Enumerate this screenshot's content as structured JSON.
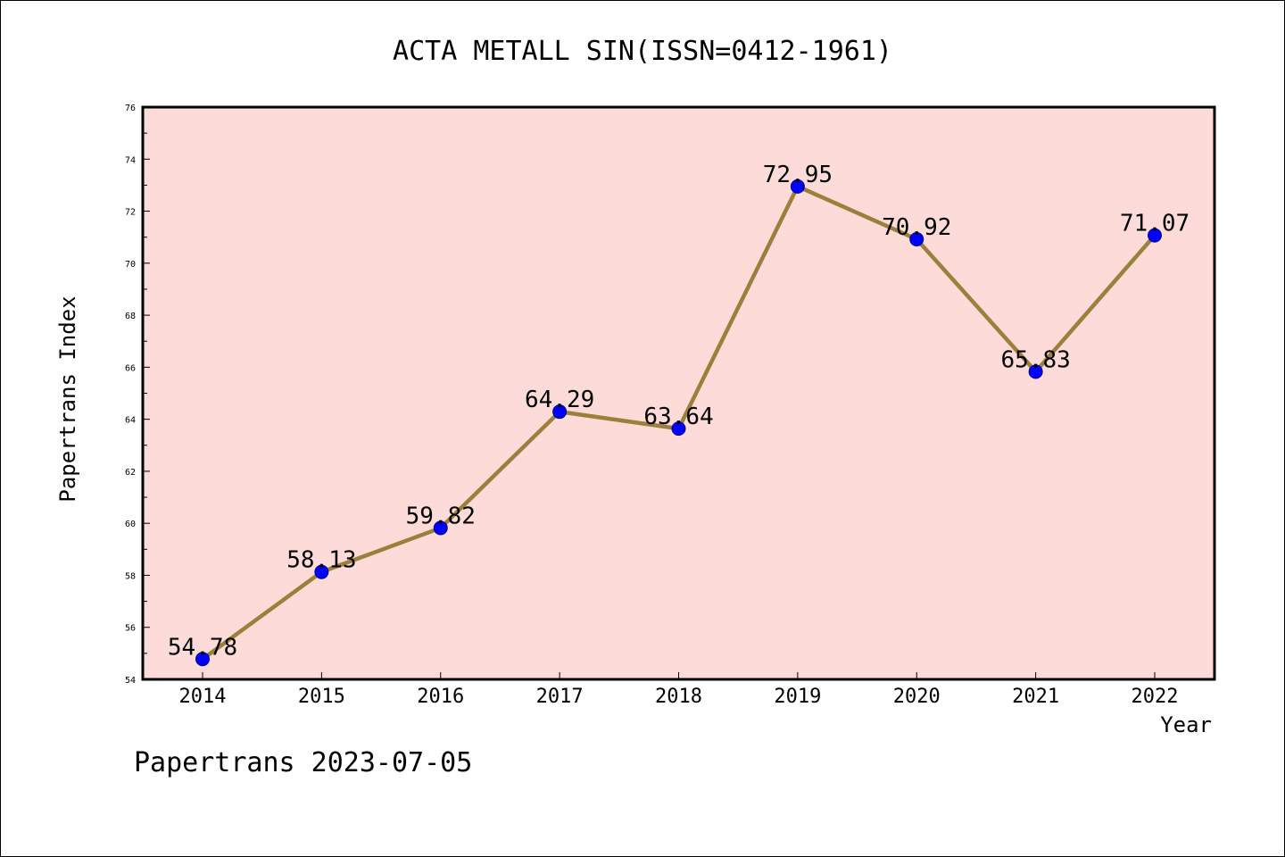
{
  "chart_data": {
    "type": "line",
    "title": "ACTA METALL SIN(ISSN=0412-1961)",
    "xlabel": "Year",
    "ylabel": "Papertrans Index",
    "categories": [
      "2014",
      "2015",
      "2016",
      "2017",
      "2018",
      "2019",
      "2020",
      "2021",
      "2022"
    ],
    "values": [
      54.78,
      58.13,
      59.82,
      64.29,
      63.64,
      72.95,
      70.92,
      65.83,
      71.07
    ],
    "data_labels": [
      "54.78",
      "58.13",
      "59.82",
      "64.29",
      "63.64",
      "72.95",
      "70.92",
      "65.83",
      "71.07"
    ],
    "yticks": [
      "54",
      "56",
      "58",
      "60",
      "62",
      "64",
      "66",
      "68",
      "70",
      "72",
      "74",
      "76"
    ],
    "ylim": [
      54,
      76
    ],
    "grid": false,
    "colors": {
      "plot_background": "#fddbd8",
      "line": "#9b7f3a",
      "marker": "#0000ff"
    }
  },
  "footer": "Papertrans 2023-07-05"
}
